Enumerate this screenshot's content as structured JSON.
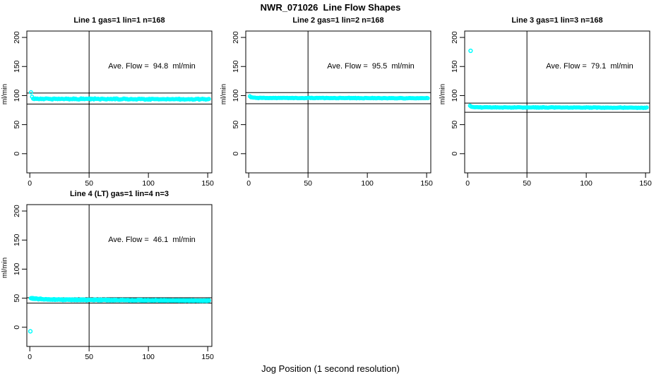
{
  "figure": {
    "title": "NWR_071026  Line Flow Shapes",
    "xlabel": "Jog Position (1 second resolution)"
  },
  "colors": {
    "points": "#00FFFF",
    "axis": "#000000",
    "background": "#FFFFFF",
    "text": "#000000"
  },
  "chart_data": [
    {
      "type": "scatter",
      "title": "Line 1 gas=1 lin=1 n=168",
      "annotation": "Ave. Flow =  94.8  ml/min",
      "ave_flow": 94.8,
      "n": 168,
      "ylabel": "ml/min",
      "xlim": [
        -2.5,
        153.5
      ],
      "ylim": [
        -33,
        211
      ],
      "xticks": [
        0,
        50,
        100,
        150
      ],
      "yticks": [
        0,
        50,
        100,
        150,
        200
      ],
      "ref_hlines": [
        104.28,
        85.32
      ],
      "ref_vline": 50,
      "outliers": [],
      "band": {
        "x_start": 1,
        "x_end": 151,
        "start": 105,
        "settle_start": 94.4,
        "settle_end": 93.6,
        "tau": 0.7,
        "jitter": 1.1,
        "count": 168,
        "series": 1
      }
    },
    {
      "type": "scatter",
      "title": "Line 2 gas=1 lin=2 n=168",
      "annotation": "Ave. Flow =  95.5  ml/min",
      "ave_flow": 95.5,
      "n": 168,
      "ylabel": "ml/min",
      "xlim": [
        -2.5,
        153.5
      ],
      "ylim": [
        -33,
        211
      ],
      "xticks": [
        0,
        50,
        100,
        150
      ],
      "yticks": [
        0,
        50,
        100,
        150,
        200
      ],
      "ref_hlines": [
        105.05,
        85.95
      ],
      "ref_vline": 50,
      "outliers": [],
      "band": {
        "x_start": 1,
        "x_end": 151,
        "start": 98.5,
        "settle_start": 96.0,
        "settle_end": 95.4,
        "tau": 1.5,
        "jitter": 0.55,
        "count": 168,
        "series": 1
      }
    },
    {
      "type": "scatter",
      "title": "Line 3 gas=1 lin=3 n=168",
      "annotation": "Ave. Flow =  79.1  ml/min",
      "ave_flow": 79.1,
      "n": 168,
      "ylabel": "ml/min",
      "xlim": [
        -2.5,
        153.5
      ],
      "ylim": [
        -33,
        211
      ],
      "xticks": [
        0,
        50,
        100,
        150
      ],
      "yticks": [
        0,
        50,
        100,
        150,
        200
      ],
      "ref_hlines": [
        87.01,
        71.19
      ],
      "ref_vline": 50,
      "outliers": [
        [
          2.5,
          177
        ]
      ],
      "band": {
        "x_start": 2,
        "x_end": 151,
        "start": 82.5,
        "settle_start": 79.7,
        "settle_end": 79.2,
        "tau": 1.4,
        "jitter": 0.6,
        "count": 168,
        "series": 1
      }
    },
    {
      "type": "scatter",
      "title": "Line 4 (LT) gas=1 lin=4 n=3",
      "annotation": "Ave. Flow =  46.1  ml/min",
      "ave_flow": 46.1,
      "n": 3,
      "ylabel": "ml/min",
      "xlim": [
        -2.5,
        153.5
      ],
      "ylim": [
        -33,
        211
      ],
      "xticks": [
        0,
        50,
        100,
        150
      ],
      "yticks": [
        0,
        50,
        100,
        150,
        200
      ],
      "ref_hlines": [
        50.71,
        41.49
      ],
      "ref_vline": 50,
      "outliers": [
        [
          0.5,
          -7
        ]
      ],
      "band": {
        "x_start": 1,
        "x_end": 151,
        "start": 49.8,
        "settle_start": 47.6,
        "settle_end": 45.8,
        "tau": 10,
        "jitter": 1.0,
        "count": 168,
        "series": 3
      }
    }
  ]
}
